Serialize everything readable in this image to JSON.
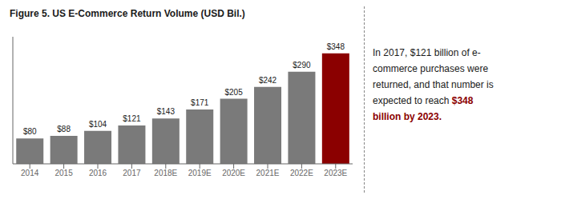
{
  "chart_data": {
    "type": "bar",
    "title": "Figure 5. US E-Commerce Return Volume (USD Bil.)",
    "categories": [
      "2014",
      "2015",
      "2016",
      "2017",
      "2018E",
      "2019E",
      "2020E",
      "2021E",
      "2022E",
      "2023E"
    ],
    "values": [
      80,
      88,
      104,
      121,
      143,
      171,
      205,
      242,
      290,
      348
    ],
    "value_labels": [
      "$80",
      "$88",
      "$104",
      "$121",
      "$143",
      "$171",
      "$205",
      "$242",
      "$290",
      "$348"
    ],
    "colors": [
      "#7a7a7a",
      "#7a7a7a",
      "#7a7a7a",
      "#7a7a7a",
      "#7a7a7a",
      "#7a7a7a",
      "#7a7a7a",
      "#7a7a7a",
      "#7a7a7a",
      "#8B0000"
    ],
    "ylim": [
      0,
      400
    ],
    "grid": false,
    "data_labels": true,
    "tick_labels": "x",
    "annotations": [
      [
        {
          "text": "In 2017, $121 billion of e-"
        }
      ],
      [
        {
          "text": "commerce purchases were"
        }
      ],
      [
        {
          "text": "returned, and that number is"
        }
      ],
      [
        {
          "text": "expected to reach "
        },
        {
          "text": "$348",
          "color": "#8B0000"
        }
      ],
      [
        {
          "text": "billion by 2023.",
          "color": "#8B0000"
        }
      ]
    ]
  }
}
